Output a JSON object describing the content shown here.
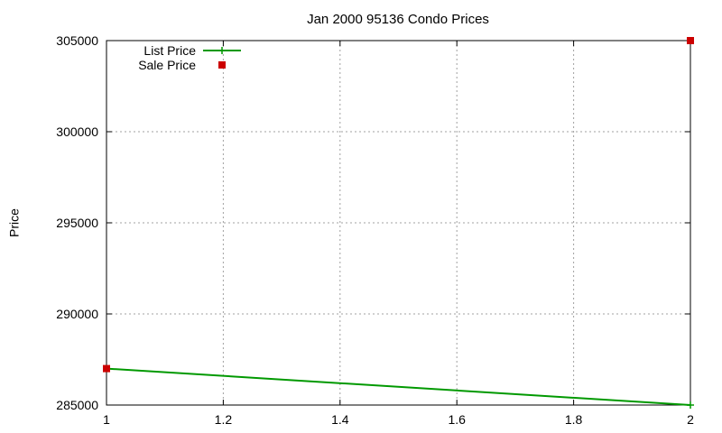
{
  "chart_data": {
    "type": "line",
    "title": "Jan 2000 95136 Condo Prices",
    "xlabel": "",
    "ylabel": "Price",
    "xlim": [
      1,
      2
    ],
    "ylim": [
      285000,
      305000
    ],
    "x_ticks": [
      "1",
      "1.2",
      "1.4",
      "1.6",
      "1.8",
      "2"
    ],
    "x_tick_values": [
      1,
      1.2,
      1.4,
      1.6,
      1.8,
      2
    ],
    "y_ticks": [
      "285000",
      "290000",
      "295000",
      "300000",
      "305000"
    ],
    "y_tick_values": [
      285000,
      290000,
      295000,
      300000,
      305000
    ],
    "grid": true,
    "legend_position": "top-left",
    "series": [
      {
        "name": "List Price",
        "style": "line-with-plus-markers",
        "color": "#009900",
        "points": [
          {
            "x": 1,
            "y": 287000
          },
          {
            "x": 2,
            "y": 285000
          }
        ]
      },
      {
        "name": "Sale Price",
        "style": "square-markers",
        "color": "#cc0000",
        "points": [
          {
            "x": 1,
            "y": 287000
          },
          {
            "x": 2,
            "y": 305000
          }
        ]
      }
    ]
  }
}
